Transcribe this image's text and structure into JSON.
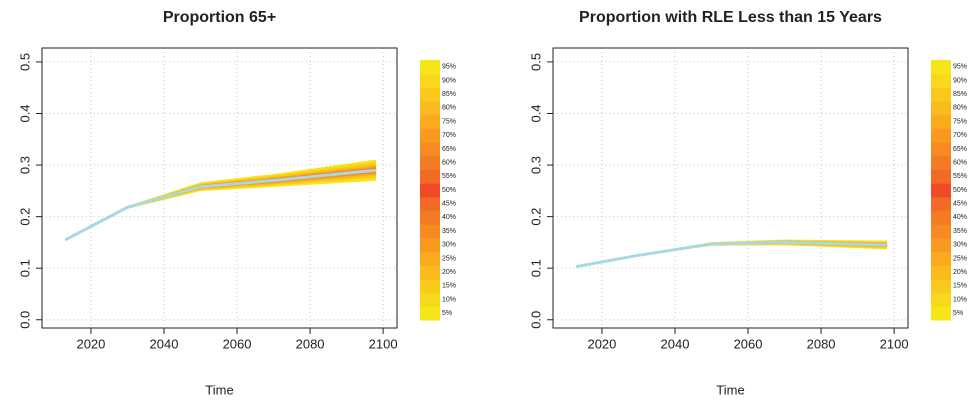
{
  "chart_data": [
    {
      "type": "fan",
      "title": "Proportion 65+",
      "xlabel": "Time",
      "x": [
        2013,
        2030,
        2050,
        2070,
        2098
      ],
      "xlim": [
        2006.6,
        2103.8
      ],
      "ylim": [
        -0.016,
        0.527
      ],
      "xticks": [
        2020,
        2040,
        2060,
        2080,
        2100
      ],
      "yticks": [
        {
          "value": 0,
          "label": "0.0"
        },
        0.1,
        0.2,
        0.3,
        0.4,
        0.5
      ],
      "grid": true,
      "line_color": "#a8d8e6",
      "series": [
        {
          "name": "5%",
          "color": "#f5e61a",
          "values": [
            0.155,
            0.216,
            0.25,
            0.258,
            0.27
          ]
        },
        {
          "name": "10%",
          "color": "#f7d81c",
          "values": [
            0.155,
            0.216,
            0.252,
            0.261,
            0.274
          ]
        },
        {
          "name": "15%",
          "color": "#f9c91c",
          "values": [
            0.155,
            0.217,
            0.253,
            0.262,
            0.277
          ]
        },
        {
          "name": "20%",
          "color": "#fbbb1e",
          "values": [
            0.155,
            0.217,
            0.254,
            0.264,
            0.28
          ]
        },
        {
          "name": "25%",
          "color": "#fbaa1e",
          "values": [
            0.155,
            0.217,
            0.255,
            0.265,
            0.282
          ]
        },
        {
          "name": "30%",
          "color": "#f99a20",
          "values": [
            0.155,
            0.217,
            0.255,
            0.266,
            0.284
          ]
        },
        {
          "name": "35%",
          "color": "#f78a22",
          "values": [
            0.155,
            0.218,
            0.256,
            0.267,
            0.285
          ]
        },
        {
          "name": "40%",
          "color": "#f47a24",
          "values": [
            0.155,
            0.218,
            0.257,
            0.268,
            0.287
          ]
        },
        {
          "name": "45%",
          "color": "#f26a26",
          "values": [
            0.155,
            0.218,
            0.257,
            0.269,
            0.288
          ]
        },
        {
          "name": "50%",
          "color": "#ef4a26",
          "values": [
            0.155,
            0.218,
            0.258,
            0.27,
            0.29
          ]
        },
        {
          "name": "55%",
          "color": "#f26a26",
          "values": [
            0.155,
            0.218,
            0.259,
            0.271,
            0.292
          ]
        },
        {
          "name": "60%",
          "color": "#f47a24",
          "values": [
            0.155,
            0.218,
            0.259,
            0.272,
            0.293
          ]
        },
        {
          "name": "65%",
          "color": "#f78a22",
          "values": [
            0.155,
            0.218,
            0.26,
            0.273,
            0.295
          ]
        },
        {
          "name": "70%",
          "color": "#f99a20",
          "values": [
            0.155,
            0.219,
            0.261,
            0.274,
            0.296
          ]
        },
        {
          "name": "75%",
          "color": "#fbaa1e",
          "values": [
            0.155,
            0.219,
            0.261,
            0.275,
            0.298
          ]
        },
        {
          "name": "80%",
          "color": "#fbbb1e",
          "values": [
            0.155,
            0.219,
            0.262,
            0.276,
            0.3
          ]
        },
        {
          "name": "85%",
          "color": "#f9c91c",
          "values": [
            0.155,
            0.219,
            0.263,
            0.278,
            0.303
          ]
        },
        {
          "name": "90%",
          "color": "#f7d81c",
          "values": [
            0.155,
            0.22,
            0.264,
            0.279,
            0.306
          ]
        },
        {
          "name": "95%",
          "color": "#f5e61a",
          "values": [
            0.155,
            0.22,
            0.266,
            0.282,
            0.31
          ]
        }
      ]
    },
    {
      "type": "fan",
      "title": "Proportion with RLE Less than 15 Years",
      "xlabel": "Time",
      "x": [
        2013,
        2030,
        2050,
        2070,
        2098
      ],
      "xlim": [
        2006.6,
        2103.8
      ],
      "ylim": [
        -0.016,
        0.527
      ],
      "xticks": [
        2020,
        2040,
        2060,
        2080,
        2100
      ],
      "yticks": [
        {
          "value": 0,
          "label": "0.0"
        },
        0.1,
        0.2,
        0.3,
        0.4,
        0.5
      ],
      "grid": true,
      "line_color": "#a8d8e6",
      "series": [
        {
          "name": "5%",
          "color": "#f5e61a",
          "values": [
            0.103,
            0.124,
            0.144,
            0.145,
            0.137
          ]
        },
        {
          "name": "10%",
          "color": "#f7d81c",
          "values": [
            0.103,
            0.124,
            0.145,
            0.146,
            0.139
          ]
        },
        {
          "name": "15%",
          "color": "#f9c91c",
          "values": [
            0.103,
            0.124,
            0.145,
            0.147,
            0.14
          ]
        },
        {
          "name": "20%",
          "color": "#fbbb1e",
          "values": [
            0.103,
            0.124,
            0.145,
            0.147,
            0.141
          ]
        },
        {
          "name": "25%",
          "color": "#fbaa1e",
          "values": [
            0.103,
            0.125,
            0.146,
            0.148,
            0.142
          ]
        },
        {
          "name": "30%",
          "color": "#f99a20",
          "values": [
            0.103,
            0.125,
            0.146,
            0.148,
            0.142
          ]
        },
        {
          "name": "35%",
          "color": "#f78a22",
          "values": [
            0.103,
            0.125,
            0.146,
            0.149,
            0.143
          ]
        },
        {
          "name": "40%",
          "color": "#f47a24",
          "values": [
            0.103,
            0.125,
            0.147,
            0.149,
            0.144
          ]
        },
        {
          "name": "45%",
          "color": "#f26a26",
          "values": [
            0.103,
            0.125,
            0.147,
            0.15,
            0.144
          ]
        },
        {
          "name": "50%",
          "color": "#ef4a26",
          "values": [
            0.103,
            0.125,
            0.147,
            0.15,
            0.145
          ]
        },
        {
          "name": "55%",
          "color": "#f26a26",
          "values": [
            0.103,
            0.125,
            0.147,
            0.15,
            0.146
          ]
        },
        {
          "name": "60%",
          "color": "#f47a24",
          "values": [
            0.103,
            0.125,
            0.147,
            0.151,
            0.146
          ]
        },
        {
          "name": "65%",
          "color": "#f78a22",
          "values": [
            0.103,
            0.125,
            0.148,
            0.151,
            0.147
          ]
        },
        {
          "name": "70%",
          "color": "#f99a20",
          "values": [
            0.103,
            0.125,
            0.148,
            0.152,
            0.148
          ]
        },
        {
          "name": "75%",
          "color": "#fbaa1e",
          "values": [
            0.103,
            0.125,
            0.148,
            0.152,
            0.148
          ]
        },
        {
          "name": "80%",
          "color": "#fbbb1e",
          "values": [
            0.103,
            0.126,
            0.149,
            0.153,
            0.149
          ]
        },
        {
          "name": "85%",
          "color": "#f9c91c",
          "values": [
            0.103,
            0.126,
            0.149,
            0.153,
            0.15
          ]
        },
        {
          "name": "90%",
          "color": "#f7d81c",
          "values": [
            0.103,
            0.126,
            0.149,
            0.154,
            0.151
          ]
        },
        {
          "name": "95%",
          "color": "#f5e61a",
          "values": [
            0.103,
            0.126,
            0.15,
            0.155,
            0.153
          ]
        }
      ]
    }
  ]
}
